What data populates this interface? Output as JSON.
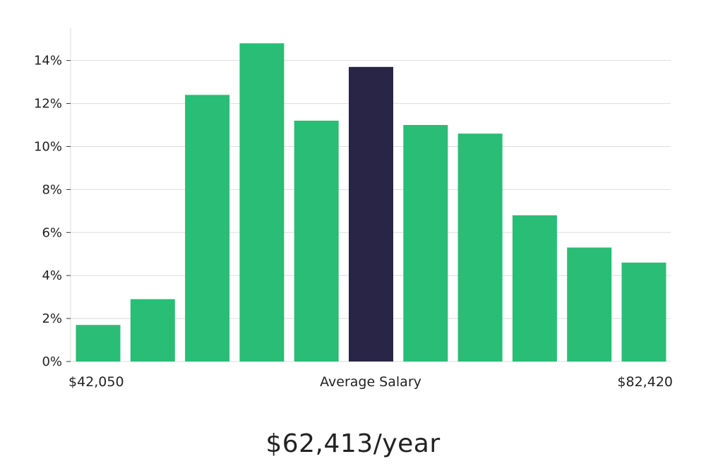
{
  "chart_data": {
    "type": "bar",
    "values": [
      1.7,
      2.9,
      12.4,
      14.8,
      11.2,
      13.7,
      11.0,
      10.6,
      6.8,
      5.3,
      4.6
    ],
    "highlight_index": 5,
    "ylim": [
      0,
      15.5
    ],
    "y_ticks": [
      0,
      2,
      4,
      6,
      8,
      10,
      12,
      14
    ],
    "y_tick_suffix": "%",
    "x_labels": {
      "left": "$42,050",
      "center": "Average Salary",
      "right": "$82,420"
    },
    "grid": true,
    "legend": "none",
    "colors": {
      "bar": "#2abd75",
      "highlight": "#282546",
      "grid": "#dddddd",
      "axis": "#dddddd"
    }
  },
  "headline": "$62,413/year"
}
